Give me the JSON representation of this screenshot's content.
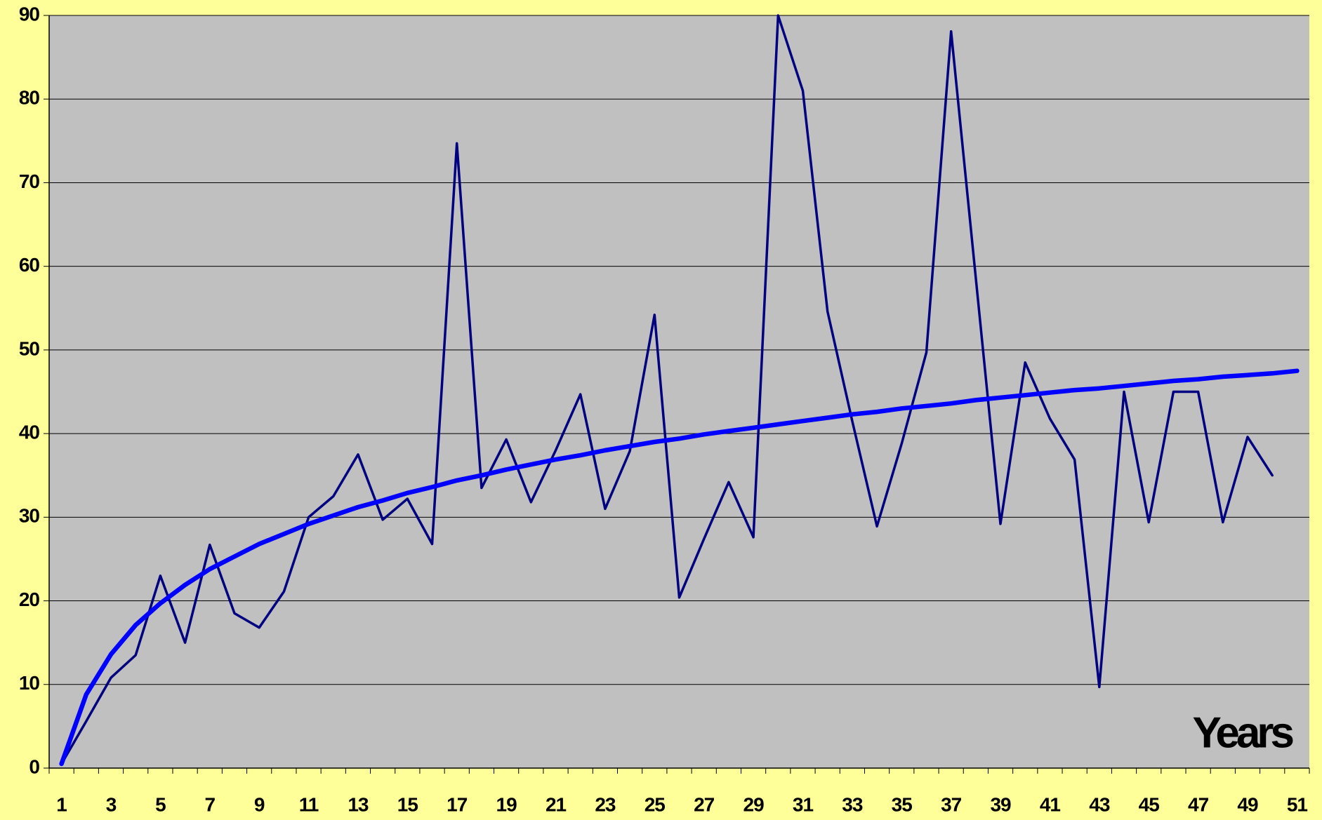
{
  "chart_data": {
    "type": "line",
    "x_label": "Years",
    "categories": [
      1,
      null,
      3,
      null,
      5,
      null,
      7,
      null,
      9,
      null,
      11,
      null,
      13,
      null,
      15,
      null,
      17,
      null,
      19,
      null,
      21,
      null,
      23,
      null,
      25,
      null,
      27,
      null,
      29,
      null,
      31,
      null,
      33,
      null,
      35,
      null,
      37,
      null,
      39,
      null,
      41,
      null,
      43,
      null,
      45,
      null,
      47,
      null,
      49,
      null,
      51
    ],
    "series": [
      {
        "color": "#000080",
        "width": 3.5,
        "values": [
          0.5,
          5.6,
          10.8,
          13.5,
          23,
          15,
          26.7,
          18.5,
          16.8,
          21.1,
          30,
          32.5,
          37.5,
          29.7,
          32.2,
          26.8,
          74.7,
          33.5,
          39.3,
          31.8,
          38,
          44.7,
          31,
          37.9,
          54.2,
          20.4,
          27.4,
          34.2,
          27.6,
          90,
          81,
          54.6,
          41.5,
          28.9,
          38.8,
          49.7,
          88.1,
          58.6,
          29.2,
          48.5,
          41.8,
          36.9,
          9.7,
          45,
          29.4,
          45,
          45,
          29.4,
          39.6,
          35,
          null
        ]
      },
      {
        "color": "#0000ff",
        "width": 6.5,
        "values": [
          0.5,
          8.8,
          13.6,
          17.1,
          19.7,
          21.9,
          23.8,
          25.3,
          26.8,
          28.0,
          29.2,
          30.2,
          31.2,
          32.0,
          32.9,
          33.6,
          34.4,
          35.0,
          35.7,
          36.3,
          36.9,
          37.4,
          38.0,
          38.5,
          39.0,
          39.4,
          39.9,
          40.3,
          40.7,
          41.1,
          41.5,
          41.9,
          42.3,
          42.6,
          43.0,
          43.3,
          43.6,
          44.0,
          44.3,
          44.6,
          44.9,
          45.2,
          45.4,
          45.7,
          46.0,
          46.3,
          46.5,
          46.8,
          47.0,
          47.2,
          47.5
        ]
      }
    ],
    "ylim": [
      0,
      90
    ],
    "yticks": [
      0,
      10,
      20,
      30,
      40,
      50,
      60,
      70,
      80,
      90
    ],
    "grid": true,
    "background": "#ffff99",
    "plot_background": "#c0c0c0"
  }
}
